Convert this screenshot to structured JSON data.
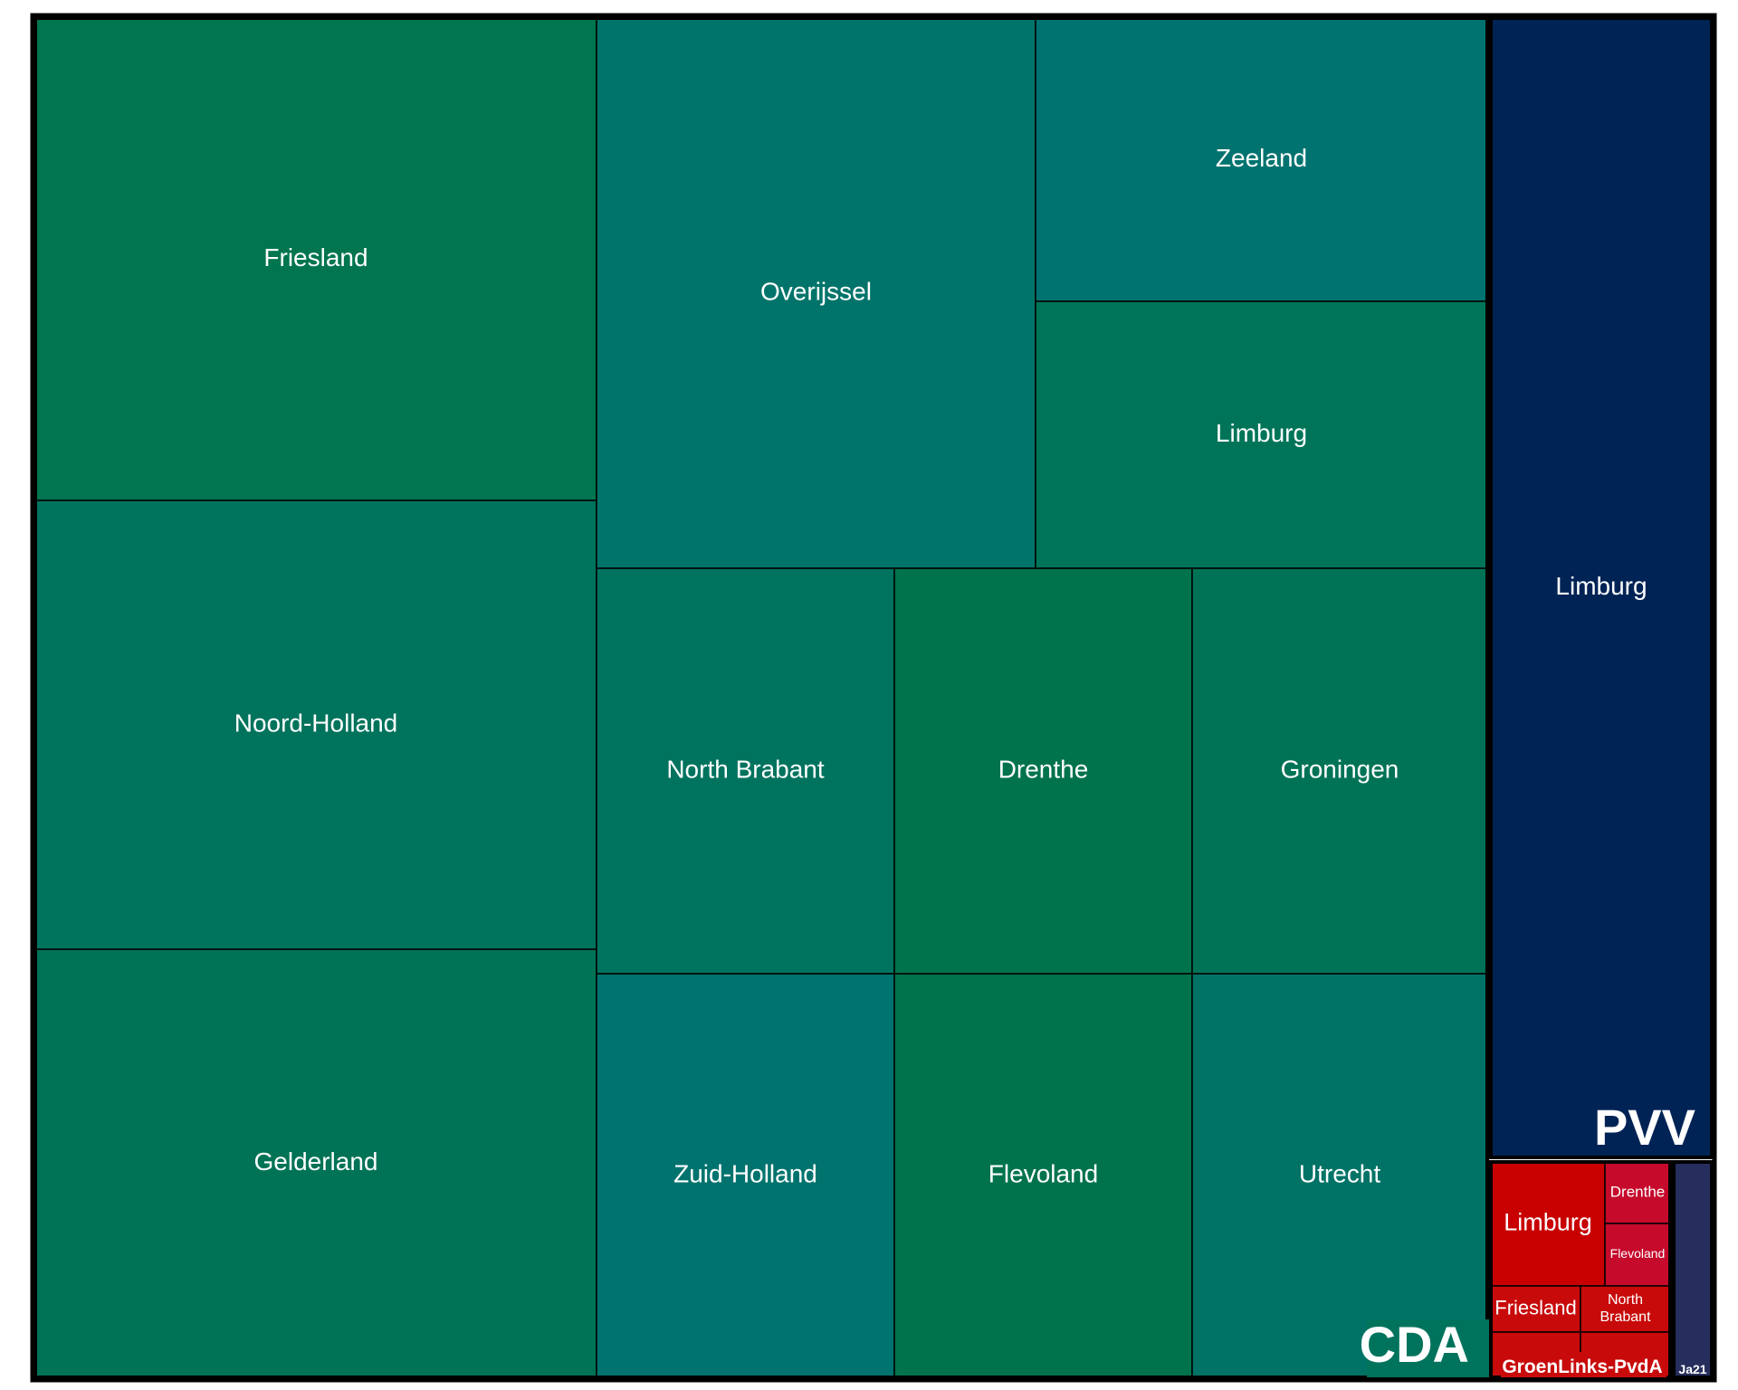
{
  "chart_data": {
    "type": "treemap",
    "title": "",
    "groups": [
      {
        "name": "CDA",
        "cells": [
          {
            "label": "Friesland",
            "color": "#00754f"
          },
          {
            "label": "Noord-Holland",
            "color": "#00735d"
          },
          {
            "label": "Gelderland",
            "color": "#007356"
          },
          {
            "label": "Overijssel",
            "color": "#00746a"
          },
          {
            "label": "Zeeland",
            "color": "#007370"
          },
          {
            "label": "Limburg",
            "color": "#007459"
          },
          {
            "label": "North Brabant",
            "color": "#00735f"
          },
          {
            "label": "Drenthe",
            "color": "#00734d"
          },
          {
            "label": "Groningen",
            "color": "#007356"
          },
          {
            "label": "Zuid-Holland",
            "color": "#00736e"
          },
          {
            "label": "Flevoland",
            "color": "#00734d"
          },
          {
            "label": "Utrecht",
            "color": "#007366"
          }
        ]
      },
      {
        "name": "PVV",
        "cells": [
          {
            "label": "Limburg",
            "color": "#002355"
          }
        ]
      },
      {
        "name": "GroenLinks-PvdA",
        "cells": [
          {
            "label": "Limburg",
            "color": "#c80000"
          },
          {
            "label": "Drenthe",
            "color": "#c50a2c"
          },
          {
            "label": "Flevoland",
            "color": "#c50a2c"
          },
          {
            "label": "Friesland",
            "color": "#c80a0a"
          },
          {
            "label": "North Brabant",
            "color": "#c80a0a"
          },
          {
            "label": "",
            "color": "#c80a0a"
          },
          {
            "label": "",
            "color": "#c80a0a"
          }
        ]
      },
      {
        "name": "Ja21",
        "cells": [
          {
            "label": "",
            "color": "#262e5d"
          }
        ]
      }
    ]
  }
}
